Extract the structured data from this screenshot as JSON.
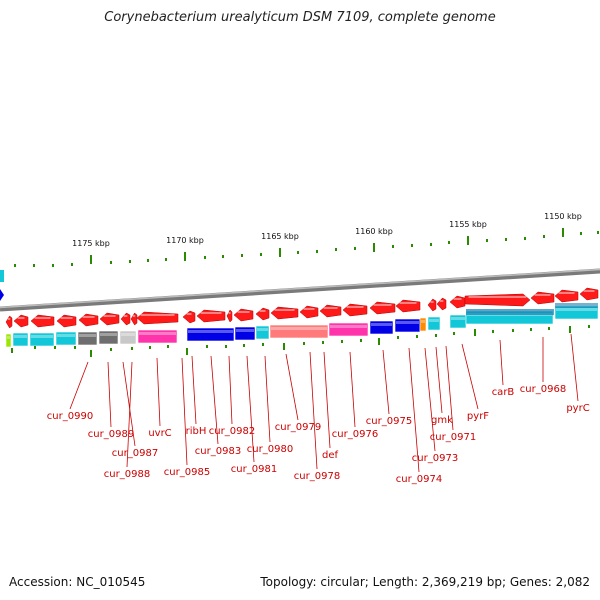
{
  "title": "Corynebacterium urealyticum DSM 7109, complete genome",
  "footer": {
    "accession": "Accession: NC_010545",
    "summary": "Topology: circular; Length: 2,369,219 bp; Genes: 2,082"
  },
  "scale": {
    "tick_labels": [
      "1175 kbp",
      "1170 kbp",
      "1165 kbp",
      "1160 kbp",
      "1155 kbp",
      "1150 kbp"
    ]
  },
  "colors": {
    "gene_forward": "#ff1a1a",
    "backbone": "#8c8c8c",
    "tick": "#2a8a00",
    "label": "#cc0000"
  },
  "cog_segments": [
    "#99e600",
    "#12c8d8",
    "#12c8d8",
    "#12c8d8",
    "#6e6e6e",
    "#6e6e6e",
    "#c8c8c8",
    "#ff33aa",
    "#0000e6",
    "#0000e6",
    "#0000e6",
    "#12c8d8",
    "#ff7a7a",
    "#ff7a7a",
    "#ff33aa",
    "#0000e6",
    "#0000e6",
    "#ff8c00",
    "#12c8d8",
    "#12c8d8",
    "#12c8d8",
    "#12c8d8",
    "#12c8d8",
    "#12c8d8"
  ],
  "gene_labels": [
    "cur_0990",
    "cur_0989",
    "cur_0987",
    "cur_0988",
    "uvrC",
    "cur_0985",
    "ribH",
    "cur_0983",
    "cur_0982",
    "cur_0981",
    "cur_0980",
    "cur_0979",
    "cur_0978",
    "def",
    "cur_0976",
    "cur_0975",
    "cur_0974",
    "cur_0973",
    "gmk",
    "cur_0971",
    "pyrF",
    "carB",
    "cur_0968",
    "pyrC"
  ]
}
